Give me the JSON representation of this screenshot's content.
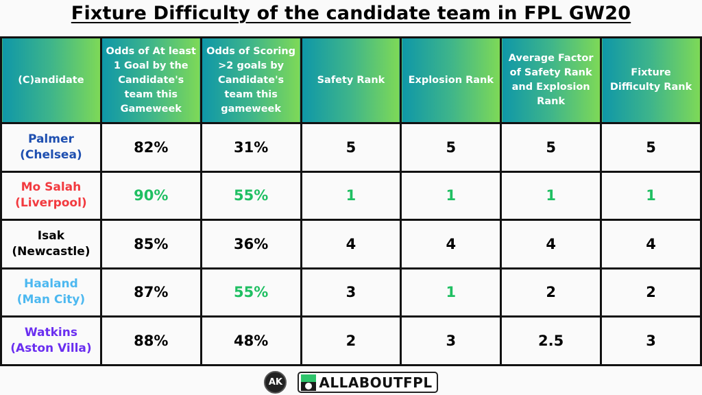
{
  "title": "Fixture Difficulty of the candidate team in FPL GW20",
  "colors": {
    "header_gradient_start": "#0f97a8",
    "header_gradient_end": "#7ed957",
    "highlight_green": "#1fbf62",
    "border": "#111111",
    "background": "#fafafa"
  },
  "table": {
    "headers": [
      "(C)andidate",
      "Odds of At least 1 Goal by the Candidate's team this Gameweek",
      "Odds of Scoring >2 goals by Candidate's team this gameweek",
      "Safety Rank",
      "Explosion Rank",
      "Average Factor of Safety Rank and Explosion Rank",
      "Fixture Difficulty Rank"
    ],
    "rows": [
      {
        "player": "Palmer",
        "team": "(Chelsea)",
        "color": "#1e4fb0",
        "cells": [
          "82%",
          "31%",
          "5",
          "5",
          "5",
          "5"
        ],
        "cell_colors": [
          "#000",
          "#000",
          "#000",
          "#000",
          "#000",
          "#000"
        ]
      },
      {
        "player": "Mo Salah",
        "team": "(Liverpool)",
        "color": "#f23a3f",
        "cells": [
          "90%",
          "55%",
          "1",
          "1",
          "1",
          "1"
        ],
        "cell_colors": [
          "#1fbf62",
          "#1fbf62",
          "#1fbf62",
          "#1fbf62",
          "#1fbf62",
          "#1fbf62"
        ]
      },
      {
        "player": "Isak",
        "team": "(Newcastle)",
        "color": "#000000",
        "cells": [
          "85%",
          "36%",
          "4",
          "4",
          "4",
          "4"
        ],
        "cell_colors": [
          "#000",
          "#000",
          "#000",
          "#000",
          "#000",
          "#000"
        ]
      },
      {
        "player": "Haaland",
        "team": "(Man City)",
        "color": "#4cb8f0",
        "cells": [
          "87%",
          "55%",
          "3",
          "1",
          "2",
          "2"
        ],
        "cell_colors": [
          "#000",
          "#1fbf62",
          "#000",
          "#1fbf62",
          "#000",
          "#000"
        ]
      },
      {
        "player": "Watkins",
        "team": "(Aston Villa)",
        "color": "#6a2ef0",
        "cells": [
          "88%",
          "48%",
          "2",
          "3",
          "2.5",
          "3"
        ],
        "cell_colors": [
          "#000",
          "#000",
          "#000",
          "#000",
          "#000",
          "#000"
        ]
      }
    ]
  },
  "footer": {
    "ak_logo": "AK",
    "brand_icon": "football-icon",
    "brand": "ALLABOUTFPL"
  }
}
